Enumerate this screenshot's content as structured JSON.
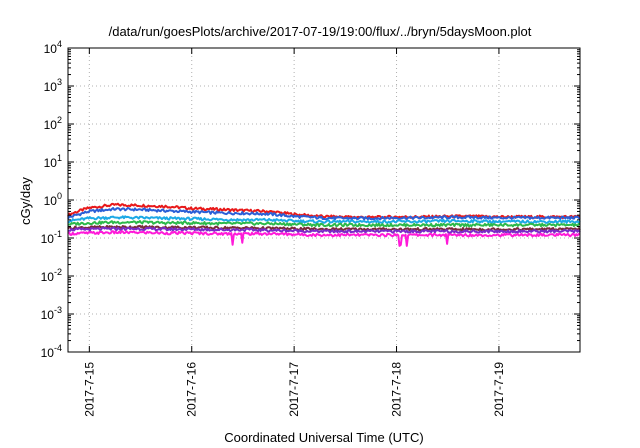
{
  "chart_data": {
    "type": "line",
    "title": "/data/run/goesPlots/archive/2017-07-19/19:00/flux/../bryn/5daysMoon.plot",
    "xlabel": "Coordinated Universal Time (UTC)",
    "ylabel": "cGy/day",
    "y_scale": "log",
    "ylim": [
      0.0001,
      10000
    ],
    "y_ticks": [
      {
        "base": "10",
        "exp": "-4"
      },
      {
        "base": "10",
        "exp": "-3"
      },
      {
        "base": "10",
        "exp": "-2"
      },
      {
        "base": "10",
        "exp": "-1"
      },
      {
        "base": "10",
        "exp": "0"
      },
      {
        "base": "10",
        "exp": "1"
      },
      {
        "base": "10",
        "exp": "2"
      },
      {
        "base": "10",
        "exp": "3"
      },
      {
        "base": "10",
        "exp": "4"
      }
    ],
    "xlim": [
      "2017-07-14T19:00",
      "2017-07-19T19:00"
    ],
    "x_ticks": [
      "2017-7-15",
      "2017-7-16",
      "2017-7-17",
      "2017-7-18",
      "2017-7-19"
    ],
    "grid": true,
    "legend": "none",
    "x": [
      "2017-07-14T19:00",
      "2017-07-15T00:00",
      "2017-07-15T06:00",
      "2017-07-15T12:00",
      "2017-07-15T18:00",
      "2017-07-16T00:00",
      "2017-07-16T06:00",
      "2017-07-16T12:00",
      "2017-07-16T18:00",
      "2017-07-17T00:00",
      "2017-07-17T06:00",
      "2017-07-17T12:00",
      "2017-07-17T18:00",
      "2017-07-18T00:00",
      "2017-07-18T06:00",
      "2017-07-18T12:00",
      "2017-07-18T18:00",
      "2017-07-19T00:00",
      "2017-07-19T06:00",
      "2017-07-19T12:00",
      "2017-07-19T19:00"
    ],
    "series": [
      {
        "color": "#e8191a",
        "values": [
          0.4,
          0.62,
          0.75,
          0.72,
          0.68,
          0.6,
          0.57,
          0.53,
          0.5,
          0.42,
          0.37,
          0.36,
          0.35,
          0.36,
          0.36,
          0.37,
          0.37,
          0.36,
          0.36,
          0.36,
          0.36
        ]
      },
      {
        "color": "#2a5fd6",
        "values": [
          0.34,
          0.5,
          0.58,
          0.56,
          0.52,
          0.49,
          0.46,
          0.45,
          0.43,
          0.37,
          0.34,
          0.33,
          0.33,
          0.34,
          0.34,
          0.35,
          0.35,
          0.34,
          0.34,
          0.34,
          0.34
        ]
      },
      {
        "color": "#1ca9e6",
        "values": [
          0.28,
          0.33,
          0.35,
          0.34,
          0.33,
          0.32,
          0.31,
          0.3,
          0.3,
          0.28,
          0.27,
          0.27,
          0.27,
          0.27,
          0.27,
          0.28,
          0.28,
          0.27,
          0.27,
          0.27,
          0.27
        ]
      },
      {
        "color": "#2db94a",
        "values": [
          0.23,
          0.25,
          0.26,
          0.26,
          0.25,
          0.25,
          0.24,
          0.24,
          0.24,
          0.23,
          0.22,
          0.22,
          0.22,
          0.22,
          0.22,
          0.22,
          0.22,
          0.22,
          0.22,
          0.22,
          0.22
        ]
      },
      {
        "color": "#7a2a3a",
        "values": [
          0.185,
          0.19,
          0.195,
          0.195,
          0.19,
          0.19,
          0.185,
          0.185,
          0.18,
          0.175,
          0.17,
          0.17,
          0.17,
          0.17,
          0.17,
          0.17,
          0.17,
          0.17,
          0.17,
          0.17,
          0.17
        ]
      },
      {
        "color": "#7a2ac8",
        "values": [
          0.165,
          0.17,
          0.175,
          0.175,
          0.17,
          0.17,
          0.165,
          0.165,
          0.16,
          0.155,
          0.15,
          0.15,
          0.15,
          0.15,
          0.15,
          0.15,
          0.15,
          0.15,
          0.15,
          0.15,
          0.15
        ]
      },
      {
        "color": "#ff1ad9",
        "values": [
          0.13,
          0.135,
          0.14,
          0.14,
          0.135,
          0.135,
          0.13,
          0.13,
          0.13,
          0.125,
          0.12,
          0.12,
          0.12,
          0.12,
          0.12,
          0.12,
          0.12,
          0.12,
          0.12,
          0.12,
          0.12
        ]
      }
    ]
  }
}
